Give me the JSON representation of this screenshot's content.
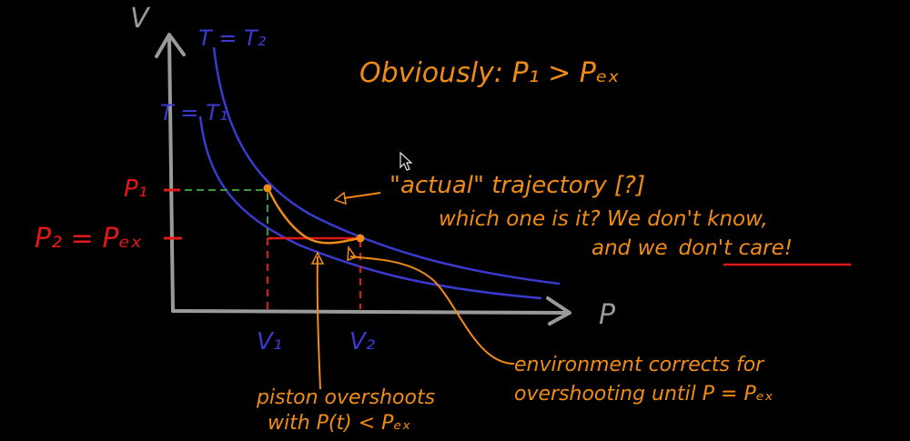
{
  "colors": {
    "background": "#000000",
    "axes": "#9a9a9a",
    "isotherm": "#3a3ad0",
    "orange": "#f08c14",
    "red": "#e01818",
    "green": "#3a9a3a",
    "white": "#e8e8e8"
  },
  "axes": {
    "y_label": "V",
    "x_label": "P"
  },
  "isotherms": {
    "upper_label": "T = T₂",
    "lower_label": "T = T₁"
  },
  "ticks": {
    "p1": "P₁",
    "p2": "P₂ = Pₑₓ",
    "v1": "V₁",
    "v2": "V₂"
  },
  "annotations": {
    "obviously": "Obviously: P₁ > Pₑₓ",
    "actual_trajectory": "\"actual\" trajectory [?]",
    "which_one": "which one is it? We don't know,",
    "we_dont_care_prefix": "and we",
    "we_dont_care_emph": "don't care",
    "we_dont_care_suffix": "!",
    "environment_line1": "environment corrects for",
    "environment_line2": "overshooting until P = Pₑₓ",
    "piston_line1": "piston overshoots",
    "piston_line2": "with P(t) < Pₑₓ"
  },
  "cursor_icon": "mouse-pointer-icon"
}
